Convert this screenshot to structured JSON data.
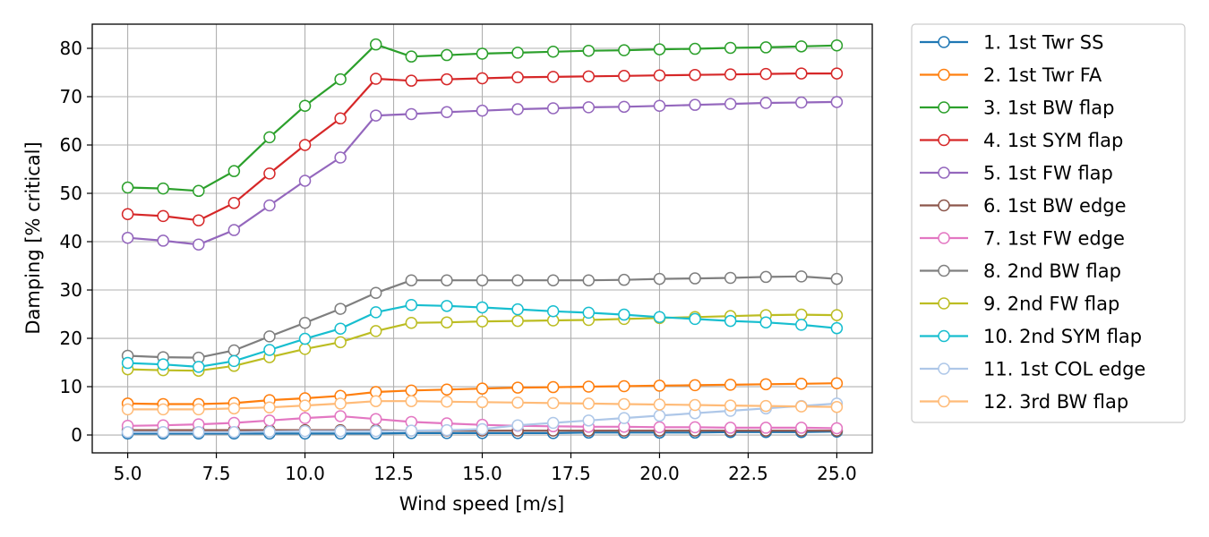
{
  "chart_data": {
    "type": "line",
    "xlabel": "Wind speed [m/s]",
    "ylabel": "Damping [% critical]",
    "xlim": [
      4.0,
      26.0
    ],
    "ylim": [
      -3.7,
      85.0
    ],
    "x_ticks": [
      5.0,
      7.5,
      10.0,
      12.5,
      15.0,
      17.5,
      20.0,
      22.5,
      25.0
    ],
    "x_tick_labels": [
      "5.0",
      "7.5",
      "10.0",
      "12.5",
      "15.0",
      "17.5",
      "20.0",
      "22.5",
      "25.0"
    ],
    "y_ticks": [
      0,
      10,
      20,
      30,
      40,
      50,
      60,
      70,
      80
    ],
    "y_tick_labels": [
      "0",
      "10",
      "20",
      "30",
      "40",
      "50",
      "60",
      "70",
      "80"
    ],
    "grid": true,
    "legend_position": "outside-right",
    "marker": "open-circle",
    "x": [
      5,
      6,
      7,
      8,
      9,
      10,
      11,
      12,
      13,
      14,
      15,
      16,
      17,
      18,
      19,
      20,
      21,
      22,
      23,
      24,
      25
    ],
    "series": [
      {
        "name": "1. 1st Twr SS",
        "color": "#1f77b4",
        "values": [
          0.3,
          0.3,
          0.3,
          0.3,
          0.3,
          0.3,
          0.3,
          0.3,
          0.4,
          0.4,
          0.4,
          0.4,
          0.4,
          0.5,
          0.5,
          0.5,
          0.5,
          0.6,
          0.6,
          0.6,
          0.7
        ]
      },
      {
        "name": "2. 1st Twr FA",
        "color": "#ff7f0e",
        "values": [
          6.5,
          6.4,
          6.4,
          6.6,
          7.2,
          7.6,
          8.1,
          8.9,
          9.2,
          9.4,
          9.6,
          9.8,
          9.9,
          10.0,
          10.1,
          10.2,
          10.3,
          10.4,
          10.5,
          10.6,
          10.7
        ]
      },
      {
        "name": "3. 1st BW flap",
        "color": "#2ca02c",
        "values": [
          51.2,
          51.0,
          50.5,
          54.6,
          61.6,
          68.1,
          73.6,
          80.8,
          78.3,
          78.6,
          78.9,
          79.1,
          79.3,
          79.5,
          79.6,
          79.8,
          79.9,
          80.1,
          80.2,
          80.4,
          80.6
        ]
      },
      {
        "name": "4. 1st SYM flap",
        "color": "#d62728",
        "values": [
          45.7,
          45.3,
          44.4,
          48.0,
          54.1,
          60.0,
          65.5,
          73.7,
          73.3,
          73.6,
          73.8,
          74.0,
          74.1,
          74.2,
          74.3,
          74.4,
          74.5,
          74.6,
          74.7,
          74.8,
          74.8
        ]
      },
      {
        "name": "5. 1st FW flap",
        "color": "#9467bd",
        "values": [
          40.8,
          40.2,
          39.4,
          42.4,
          47.5,
          52.6,
          57.4,
          66.1,
          66.4,
          66.8,
          67.1,
          67.4,
          67.6,
          67.8,
          67.9,
          68.1,
          68.3,
          68.5,
          68.7,
          68.8,
          68.9
        ]
      },
      {
        "name": "6. 1st BW edge",
        "color": "#8c564b",
        "values": [
          1.0,
          1.0,
          1.0,
          1.0,
          1.0,
          1.0,
          1.0,
          1.0,
          0.9,
          0.9,
          0.9,
          0.9,
          0.9,
          0.9,
          0.9,
          0.9,
          0.9,
          0.9,
          0.9,
          0.9,
          0.9
        ]
      },
      {
        "name": "7. 1st FW edge",
        "color": "#e377c2",
        "values": [
          1.9,
          2.0,
          2.2,
          2.5,
          3.0,
          3.5,
          3.9,
          3.3,
          2.7,
          2.4,
          2.1,
          1.9,
          1.8,
          1.7,
          1.7,
          1.6,
          1.6,
          1.5,
          1.5,
          1.5,
          1.4
        ]
      },
      {
        "name": "8. 2nd BW flap",
        "color": "#7f7f7f",
        "values": [
          16.4,
          16.1,
          16.0,
          17.5,
          20.4,
          23.2,
          26.1,
          29.4,
          32.0,
          32.0,
          32.0,
          32.0,
          32.0,
          32.0,
          32.1,
          32.3,
          32.4,
          32.5,
          32.7,
          32.8,
          32.3
        ]
      },
      {
        "name": "9. 2nd FW flap",
        "color": "#bcbd22",
        "values": [
          13.6,
          13.4,
          13.3,
          14.3,
          16.1,
          17.8,
          19.2,
          21.5,
          23.2,
          23.3,
          23.5,
          23.6,
          23.7,
          23.8,
          24.0,
          24.2,
          24.4,
          24.6,
          24.8,
          24.9,
          24.8
        ]
      },
      {
        "name": "10. 2nd SYM flap",
        "color": "#17becf",
        "values": [
          14.9,
          14.6,
          14.1,
          15.3,
          17.6,
          19.9,
          22.0,
          25.4,
          26.9,
          26.7,
          26.4,
          26.0,
          25.6,
          25.3,
          24.9,
          24.4,
          24.0,
          23.6,
          23.3,
          22.8,
          22.1
        ]
      },
      {
        "name": "11. 1st COL edge",
        "color": "#aec7e8",
        "values": [
          0.6,
          0.6,
          0.6,
          0.6,
          0.7,
          0.8,
          0.8,
          0.8,
          0.9,
          1.0,
          1.2,
          2.0,
          2.5,
          3.0,
          3.5,
          4.0,
          4.5,
          5.0,
          5.5,
          6.0,
          6.5
        ]
      },
      {
        "name": "12. 3rd BW flap",
        "color": "#ffbb78",
        "values": [
          5.3,
          5.3,
          5.3,
          5.5,
          5.7,
          6.1,
          6.5,
          7.0,
          7.0,
          6.9,
          6.8,
          6.7,
          6.6,
          6.5,
          6.4,
          6.3,
          6.2,
          6.1,
          6.0,
          5.9,
          5.8
        ]
      }
    ]
  }
}
